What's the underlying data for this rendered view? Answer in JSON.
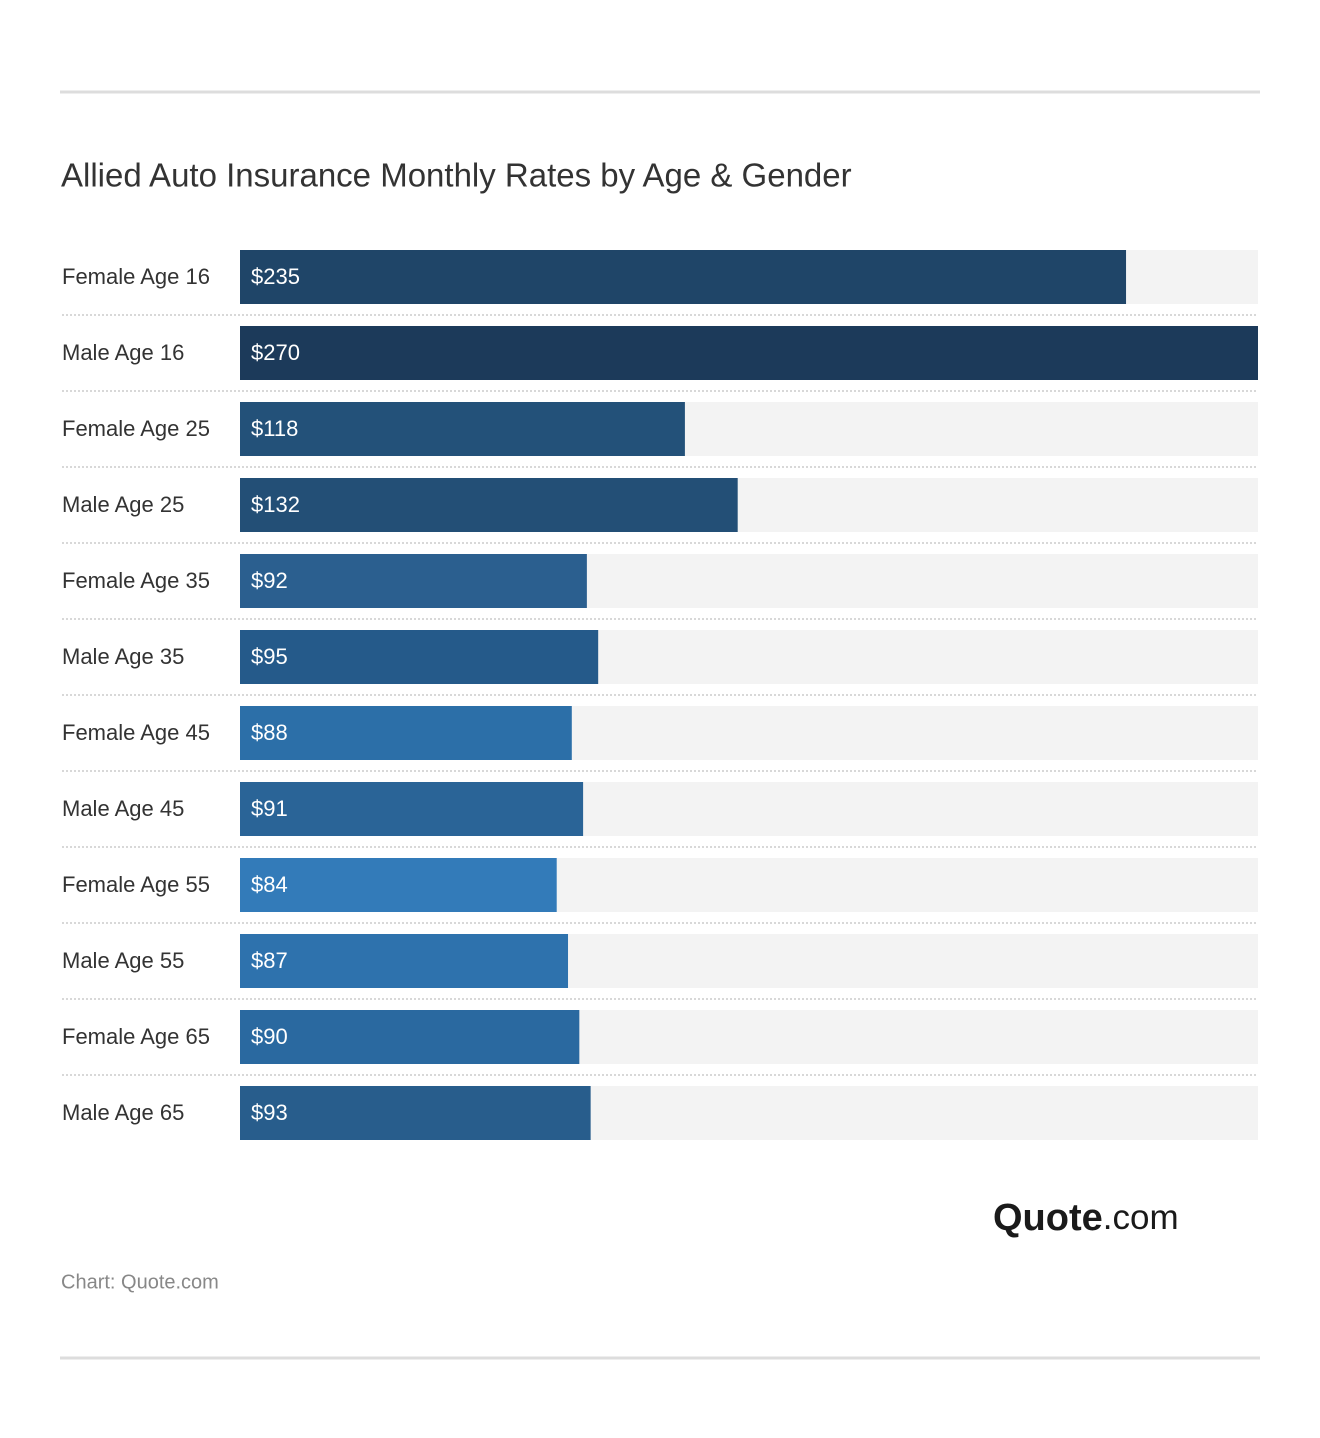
{
  "chart_data": {
    "type": "bar",
    "orientation": "horizontal",
    "title": "Allied Auto Insurance Monthly Rates by Age & Gender",
    "categories": [
      "Female Age 16",
      "Male Age 16",
      "Female Age 25",
      "Male Age 25",
      "Female Age 35",
      "Male Age 35",
      "Female Age 45",
      "Male Age 45",
      "Female Age 55",
      "Male Age 55",
      "Female Age 65",
      "Male Age 65"
    ],
    "values": [
      235,
      270,
      118,
      132,
      92,
      95,
      88,
      91,
      84,
      87,
      90,
      93
    ],
    "value_labels": [
      "$235",
      "$270",
      "$118",
      "$132",
      "$92",
      "$95",
      "$88",
      "$91",
      "$84",
      "$87",
      "$90",
      "$93"
    ],
    "colors": [
      "#1f4568",
      "#1c3a5a",
      "#235179",
      "#234f76",
      "#2b5f8f",
      "#255a8a",
      "#2c6fa8",
      "#2a6497",
      "#337bb9",
      "#2e72ad",
      "#2a69a0",
      "#285d8c"
    ],
    "xlim": [
      0,
      270
    ],
    "source": "Chart: Quote.com",
    "logo": {
      "name": "Quote",
      "suffix": ".com"
    }
  }
}
